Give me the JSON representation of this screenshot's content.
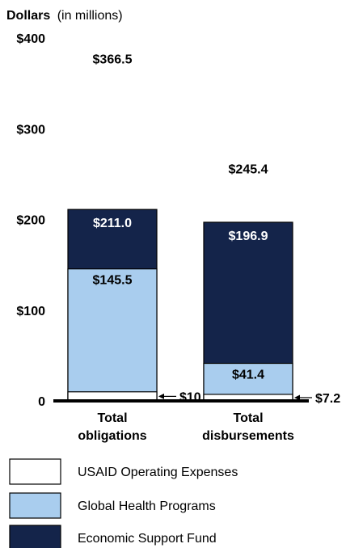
{
  "chart_data": {
    "type": "bar",
    "stacked": true,
    "ylabel": "Dollars",
    "ylabel_unit": "(in millions)",
    "ylim": [
      0,
      400
    ],
    "yticks": [
      {
        "value": 0,
        "label": "0"
      },
      {
        "value": 100,
        "label": "$100"
      },
      {
        "value": 200,
        "label": "$200"
      },
      {
        "value": 300,
        "label": "$300"
      },
      {
        "value": 400,
        "label": "$400"
      }
    ],
    "categories": [
      {
        "line1": "Total",
        "line2": "obligations"
      },
      {
        "line1": "Total",
        "line2": "disbursements"
      }
    ],
    "series": [
      {
        "name": "Economic Support Fund",
        "color": "#14244a",
        "values": [
          211.0,
          196.9
        ],
        "labels": [
          "$211.0",
          "$196.9"
        ]
      },
      {
        "name": "Global Health Programs",
        "color": "#a9cdee",
        "values": [
          145.5,
          41.4
        ],
        "labels": [
          "$145.5",
          "$41.4"
        ]
      },
      {
        "name": "USAID Operating Expenses",
        "color": "#ffffff",
        "values": [
          10.0,
          7.2
        ],
        "labels": [
          "$10.0",
          "$7.2"
        ]
      }
    ],
    "totals": [
      {
        "value": 366.5,
        "label": "$366.5"
      },
      {
        "value": 245.4,
        "label": "$245.4"
      }
    ],
    "legend": {
      "position": "bottom"
    }
  }
}
